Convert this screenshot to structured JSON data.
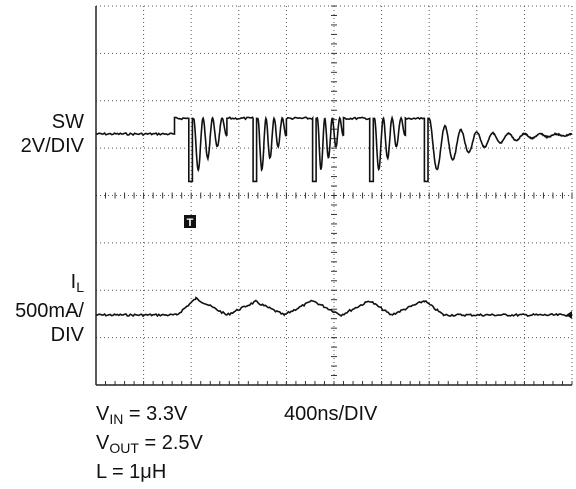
{
  "chart_data": {
    "type": "line",
    "title": "",
    "grid": true,
    "grid_divisions": {
      "x": 10,
      "y": 8
    },
    "channels": [
      {
        "name": "SW",
        "label_lines": [
          "SW",
          "2V/DIV"
        ],
        "trigger_marker": "T",
        "segments": [
          {
            "shape": "flat",
            "t0": 0.0,
            "t1": 3.3,
            "level": 0
          },
          {
            "shape": "step",
            "t": 3.3,
            "from": 0,
            "to": 0.33
          },
          {
            "shape": "flat",
            "t0": 3.3,
            "t1": 3.9,
            "level": 0.33
          },
          {
            "shape": "burst",
            "t0": 3.9,
            "t1": 5.5,
            "low": -1.0,
            "high": 0.33,
            "ring_amp": 0.6,
            "ring_cycles": 3.5
          },
          {
            "shape": "flat",
            "t0": 5.5,
            "t1": 6.6,
            "level": 0.33
          },
          {
            "shape": "burst",
            "t0": 6.6,
            "t1": 8.0,
            "low": -1.0,
            "high": 0.33,
            "ring_amp": 0.6,
            "ring_cycles": 3.5
          },
          {
            "shape": "flat",
            "t0": 8.0,
            "t1": 9.1,
            "level": 0.33
          },
          {
            "shape": "burst",
            "t0": 9.1,
            "t1": 10.4,
            "low": -1.0,
            "high": 0.33,
            "ring_amp": 0.6,
            "ring_cycles": 3.5
          },
          {
            "shape": "flat",
            "t0": 10.4,
            "t1": 11.5,
            "level": 0.33
          },
          {
            "shape": "burst",
            "t0": 11.5,
            "t1": 13.0,
            "low": -1.0,
            "high": 0.33,
            "ring_amp": 0.6,
            "ring_cycles": 3.5
          },
          {
            "shape": "flat",
            "t0": 13.0,
            "t1": 13.8,
            "level": 0.33
          },
          {
            "shape": "burst_decay",
            "t0": 13.8,
            "t1": 20.0,
            "low": -1.0,
            "high": 0.33,
            "ring_amp": 0.6,
            "ring_cycles": 9,
            "decay_to": 0
          }
        ]
      },
      {
        "name": "I_L",
        "label_main": "I",
        "label_sub": "L",
        "label_lines": [
          "500mA/",
          "DIV"
        ],
        "segments": [
          {
            "shape": "flat",
            "t0": 0.0,
            "t1": 3.4,
            "level": 0
          },
          {
            "shape": "ramp",
            "t0": 3.4,
            "t1": 4.2,
            "from": 0,
            "to": 0.35
          },
          {
            "shape": "ramp",
            "t0": 4.2,
            "t1": 5.5,
            "from": 0.35,
            "to": 0
          },
          {
            "shape": "ramp",
            "t0": 5.5,
            "t1": 6.7,
            "from": 0,
            "to": 0.28
          },
          {
            "shape": "ramp",
            "t0": 6.7,
            "t1": 7.9,
            "from": 0.28,
            "to": 0
          },
          {
            "shape": "ramp",
            "t0": 7.9,
            "t1": 9.1,
            "from": 0,
            "to": 0.3
          },
          {
            "shape": "ramp",
            "t0": 9.1,
            "t1": 10.3,
            "from": 0.3,
            "to": 0
          },
          {
            "shape": "ramp",
            "t0": 10.3,
            "t1": 11.5,
            "from": 0,
            "to": 0.3
          },
          {
            "shape": "ramp",
            "t0": 11.5,
            "t1": 12.4,
            "from": 0.3,
            "to": 0
          },
          {
            "shape": "ramp",
            "t0": 12.4,
            "t1": 13.8,
            "from": 0,
            "to": 0.3
          },
          {
            "shape": "ramp",
            "t0": 13.8,
            "t1": 14.6,
            "from": 0.3,
            "to": 0
          },
          {
            "shape": "flat",
            "t0": 14.6,
            "t1": 20.0,
            "level": 0
          }
        ]
      }
    ],
    "timebase": "400ns/DIV",
    "conditions": [
      {
        "main": "V",
        "sub": "IN",
        "rest": " = 3.3V"
      },
      {
        "main": "V",
        "sub": "OUT",
        "rest": " = 2.5V"
      },
      {
        "main": "L = 1μH",
        "sub": "",
        "rest": ""
      }
    ]
  }
}
